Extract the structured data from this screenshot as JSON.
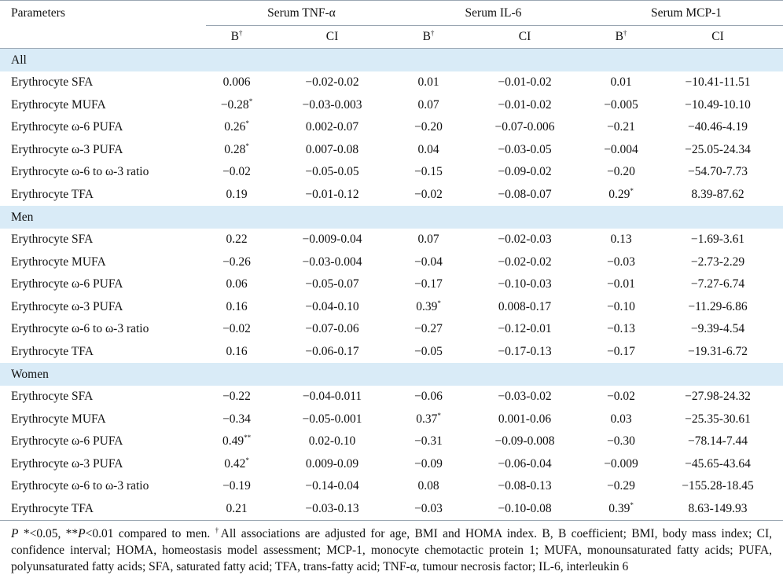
{
  "header": {
    "parameters": "Parameters",
    "groups": [
      "Serum TNF-α",
      "Serum IL-6",
      "Serum MCP-1"
    ],
    "b_label": "B",
    "b_sup": "†",
    "ci_label": "CI"
  },
  "sections": [
    {
      "title": "All",
      "rows": [
        {
          "param": "Erythrocyte SFA",
          "tnf_b": "0.006",
          "tnf_b_sup": "",
          "tnf_ci": "−0.02-0.02",
          "il6_b": "0.01",
          "il6_b_sup": "",
          "il6_ci": "−0.01-0.02",
          "mcp_b": "0.01",
          "mcp_b_sup": "",
          "mcp_ci": "−10.41-11.51"
        },
        {
          "param": "Erythrocyte MUFA",
          "tnf_b": "−0.28",
          "tnf_b_sup": "*",
          "tnf_ci": "−0.03-0.003",
          "il6_b": "0.07",
          "il6_b_sup": "",
          "il6_ci": "−0.01-0.02",
          "mcp_b": "−0.005",
          "mcp_b_sup": "",
          "mcp_ci": "−10.49-10.10"
        },
        {
          "param": "Erythrocyte ω-6 PUFA",
          "tnf_b": "0.26",
          "tnf_b_sup": "*",
          "tnf_ci": "0.002-0.07",
          "il6_b": "−0.20",
          "il6_b_sup": "",
          "il6_ci": "−0.07-0.006",
          "mcp_b": "−0.21",
          "mcp_b_sup": "",
          "mcp_ci": "−40.46-4.19"
        },
        {
          "param": "Erythrocyte ω-3 PUFA",
          "tnf_b": "0.28",
          "tnf_b_sup": "*",
          "tnf_ci": "0.007-0.08",
          "il6_b": "0.04",
          "il6_b_sup": "",
          "il6_ci": "−0.03-0.05",
          "mcp_b": "−0.004",
          "mcp_b_sup": "",
          "mcp_ci": "−25.05-24.34"
        },
        {
          "param": "Erythrocyte ω-6 to ω-3 ratio",
          "tnf_b": "−0.02",
          "tnf_b_sup": "",
          "tnf_ci": "−0.05-0.05",
          "il6_b": "−0.15",
          "il6_b_sup": "",
          "il6_ci": "−0.09-0.02",
          "mcp_b": "−0.20",
          "mcp_b_sup": "",
          "mcp_ci": "−54.70-7.73"
        },
        {
          "param": "Erythrocyte TFA",
          "tnf_b": "0.19",
          "tnf_b_sup": "",
          "tnf_ci": "−0.01-0.12",
          "il6_b": "−0.02",
          "il6_b_sup": "",
          "il6_ci": "−0.08-0.07",
          "mcp_b": "0.29",
          "mcp_b_sup": "*",
          "mcp_ci": "8.39-87.62"
        }
      ]
    },
    {
      "title": "Men",
      "rows": [
        {
          "param": "Erythrocyte SFA",
          "tnf_b": "0.22",
          "tnf_b_sup": "",
          "tnf_ci": "−0.009-0.04",
          "il6_b": "0.07",
          "il6_b_sup": "",
          "il6_ci": "−0.02-0.03",
          "mcp_b": "0.13",
          "mcp_b_sup": "",
          "mcp_ci": "−1.69-3.61"
        },
        {
          "param": "Erythrocyte MUFA",
          "tnf_b": "−0.26",
          "tnf_b_sup": "",
          "tnf_ci": "−0.03-0.004",
          "il6_b": "−0.04",
          "il6_b_sup": "",
          "il6_ci": "−0.02-0.02",
          "mcp_b": "−0.03",
          "mcp_b_sup": "",
          "mcp_ci": "−2.73-2.29"
        },
        {
          "param": "Erythrocyte ω-6 PUFA",
          "tnf_b": "0.06",
          "tnf_b_sup": "",
          "tnf_ci": "−0.05-0.07",
          "il6_b": "−0.17",
          "il6_b_sup": "",
          "il6_ci": "−0.10-0.03",
          "mcp_b": "−0.01",
          "mcp_b_sup": "",
          "mcp_ci": "−7.27-6.74"
        },
        {
          "param": "Erythrocyte ω-3 PUFA",
          "tnf_b": "0.16",
          "tnf_b_sup": "",
          "tnf_ci": "−0.04-0.10",
          "il6_b": "0.39",
          "il6_b_sup": "*",
          "il6_ci": "0.008-0.17",
          "mcp_b": "−0.10",
          "mcp_b_sup": "",
          "mcp_ci": "−11.29-6.86"
        },
        {
          "param": "Erythrocyte ω-6 to ω-3 ratio",
          "tnf_b": "−0.02",
          "tnf_b_sup": "",
          "tnf_ci": "−0.07-0.06",
          "il6_b": "−0.27",
          "il6_b_sup": "",
          "il6_ci": "−0.12-0.01",
          "mcp_b": "−0.13",
          "mcp_b_sup": "",
          "mcp_ci": "−9.39-4.54"
        },
        {
          "param": "Erythrocyte TFA",
          "tnf_b": "0.16",
          "tnf_b_sup": "",
          "tnf_ci": "−0.06-0.17",
          "il6_b": "−0.05",
          "il6_b_sup": "",
          "il6_ci": "−0.17-0.13",
          "mcp_b": "−0.17",
          "mcp_b_sup": "",
          "mcp_ci": "−19.31-6.72"
        }
      ]
    },
    {
      "title": "Women",
      "rows": [
        {
          "param": "Erythrocyte SFA",
          "tnf_b": "−0.22",
          "tnf_b_sup": "",
          "tnf_ci": "−0.04-0.011",
          "il6_b": "−0.06",
          "il6_b_sup": "",
          "il6_ci": "−0.03-0.02",
          "mcp_b": "−0.02",
          "mcp_b_sup": "",
          "mcp_ci": "−27.98-24.32"
        },
        {
          "param": "Erythrocyte MUFA",
          "tnf_b": "−0.34",
          "tnf_b_sup": "",
          "tnf_ci": "−0.05-0.001",
          "il6_b": "0.37",
          "il6_b_sup": "*",
          "il6_ci": "0.001-0.06",
          "mcp_b": "0.03",
          "mcp_b_sup": "",
          "mcp_ci": "−25.35-30.61"
        },
        {
          "param": "Erythrocyte ω-6 PUFA",
          "tnf_b": "0.49",
          "tnf_b_sup": "**",
          "tnf_ci": "0.02-0.10",
          "il6_b": "−0.31",
          "il6_b_sup": "",
          "il6_ci": "−0.09-0.008",
          "mcp_b": "−0.30",
          "mcp_b_sup": "",
          "mcp_ci": "−78.14-7.44"
        },
        {
          "param": "Erythrocyte ω-3 PUFA",
          "tnf_b": "0.42",
          "tnf_b_sup": "*",
          "tnf_ci": "0.009-0.09",
          "il6_b": "−0.09",
          "il6_b_sup": "",
          "il6_ci": "−0.06-0.04",
          "mcp_b": "−0.009",
          "mcp_b_sup": "",
          "mcp_ci": "−45.65-43.64"
        },
        {
          "param": "Erythrocyte ω-6 to ω-3 ratio",
          "tnf_b": "−0.19",
          "tnf_b_sup": "",
          "tnf_ci": "−0.14-0.04",
          "il6_b": "0.08",
          "il6_b_sup": "",
          "il6_ci": "−0.08-0.13",
          "mcp_b": "−0.29",
          "mcp_b_sup": "",
          "mcp_ci": "−155.28-18.45"
        },
        {
          "param": "Erythrocyte TFA",
          "tnf_b": "0.21",
          "tnf_b_sup": "",
          "tnf_ci": "−0.03-0.13",
          "il6_b": "−0.03",
          "il6_b_sup": "",
          "il6_ci": "−0.10-0.08",
          "mcp_b": "0.39",
          "mcp_b_sup": "*",
          "mcp_ci": "8.63-149.93"
        }
      ]
    }
  ],
  "footnote": {
    "p_italic": "P",
    "text1": " *<0.05, **",
    "p2_italic": "P",
    "text2": "<0.01 compared to men. ",
    "dagger": "†",
    "text3": "All associations are adjusted for age, BMI and HOMA index. B, B coefficient; BMI, body mass index; CI, confidence interval; HOMA, homeostasis model assessment; MCP-1, monocyte chemotactic protein 1; MUFA, monounsaturated fatty acids; PUFA, polyunsaturated fatty acids; SFA, saturated fatty acid; TFA, trans-fatty acid; TNF-α, tumour necrosis factor; IL-6, interleukin 6"
  }
}
